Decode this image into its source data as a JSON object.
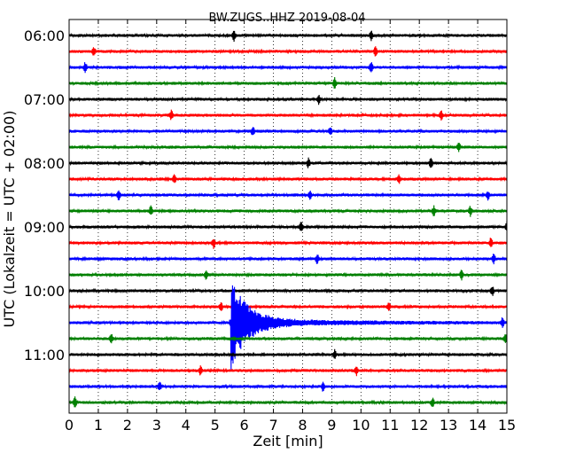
{
  "chart_data": {
    "type": "line",
    "title": "BW.ZUGS..HHZ 2019-08-04",
    "xlabel": "Zeit  [min]",
    "ylabel": "UTC (Lokalzeit = UTC + 02:00)",
    "xlim": [
      0,
      15
    ],
    "x_ticks": [
      "0",
      "1",
      "2",
      "3",
      "4",
      "5",
      "6",
      "7",
      "8",
      "9",
      "10",
      "11",
      "12",
      "13",
      "14",
      "15"
    ],
    "y_ticks": [
      "06:00",
      "07:00",
      "08:00",
      "09:00",
      "10:00",
      "11:00"
    ],
    "grid": "vertical dotted at each minute",
    "trace_interval_minutes": 15,
    "traces_start": "06:00",
    "trace_colors": [
      "#000000",
      "#ff0000",
      "#0000ff",
      "#008000"
    ],
    "series": [
      {
        "start": "06:00",
        "color": "#000000",
        "spikes_min": [
          5.65,
          10.35
        ]
      },
      {
        "start": "06:15",
        "color": "#ff0000",
        "spikes_min": [
          0.85,
          10.5
        ]
      },
      {
        "start": "06:30",
        "color": "#0000ff",
        "spikes_min": [
          0.55,
          10.35
        ]
      },
      {
        "start": "06:45",
        "color": "#008000",
        "spikes_min": [
          9.1
        ]
      },
      {
        "start": "07:00",
        "color": "#000000",
        "spikes_min": [
          8.55
        ]
      },
      {
        "start": "07:15",
        "color": "#ff0000",
        "spikes_min": [
          3.5,
          12.75
        ]
      },
      {
        "start": "07:30",
        "color": "#0000ff",
        "spikes_min": [
          6.3,
          8.95
        ]
      },
      {
        "start": "07:45",
        "color": "#008000",
        "spikes_min": [
          13.35
        ]
      },
      {
        "start": "08:00",
        "color": "#000000",
        "spikes_min": [
          8.2,
          12.4
        ]
      },
      {
        "start": "08:15",
        "color": "#ff0000",
        "spikes_min": [
          3.6,
          11.3
        ]
      },
      {
        "start": "08:30",
        "color": "#0000ff",
        "spikes_min": [
          1.7,
          8.25,
          14.35
        ]
      },
      {
        "start": "08:45",
        "color": "#008000",
        "spikes_min": [
          2.8,
          12.5,
          13.75
        ]
      },
      {
        "start": "09:00",
        "color": "#000000",
        "spikes_min": [
          7.95,
          15.0
        ]
      },
      {
        "start": "09:15",
        "color": "#ff0000",
        "spikes_min": [
          4.95,
          14.45
        ]
      },
      {
        "start": "09:30",
        "color": "#0000ff",
        "spikes_min": [
          8.5,
          14.55
        ]
      },
      {
        "start": "09:45",
        "color": "#008000",
        "spikes_min": [
          4.7,
          13.45
        ]
      },
      {
        "start": "10:00",
        "color": "#000000",
        "spikes_min": [
          14.5
        ]
      },
      {
        "start": "10:15",
        "color": "#ff0000",
        "spikes_min": [
          5.2,
          10.95
        ]
      },
      {
        "start": "10:30",
        "color": "#0000ff",
        "spikes_min": [
          5.55,
          14.85
        ],
        "event_onset_min": 5.55
      },
      {
        "start": "10:45",
        "color": "#008000",
        "spikes_min": [
          1.45,
          14.95
        ]
      },
      {
        "start": "11:00",
        "color": "#000000",
        "spikes_min": [
          9.1
        ]
      },
      {
        "start": "11:15",
        "color": "#ff0000",
        "spikes_min": [
          4.5,
          9.85
        ]
      },
      {
        "start": "11:30",
        "color": "#0000ff",
        "spikes_min": [
          3.1,
          8.7
        ]
      },
      {
        "start": "11:45",
        "color": "#008000",
        "spikes_min": [
          0.2,
          12.45
        ]
      }
    ]
  }
}
